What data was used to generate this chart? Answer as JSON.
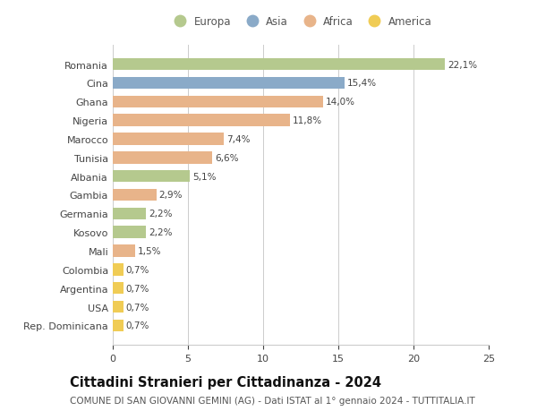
{
  "categories": [
    "Rep. Dominicana",
    "USA",
    "Argentina",
    "Colombia",
    "Mali",
    "Kosovo",
    "Germania",
    "Gambia",
    "Albania",
    "Tunisia",
    "Marocco",
    "Nigeria",
    "Ghana",
    "Cina",
    "Romania"
  ],
  "values": [
    0.7,
    0.7,
    0.7,
    0.7,
    1.5,
    2.2,
    2.2,
    2.9,
    5.1,
    6.6,
    7.4,
    11.8,
    14.0,
    15.4,
    22.1
  ],
  "labels": [
    "0,7%",
    "0,7%",
    "0,7%",
    "0,7%",
    "1,5%",
    "2,2%",
    "2,2%",
    "2,9%",
    "5,1%",
    "6,6%",
    "7,4%",
    "11,8%",
    "14,0%",
    "15,4%",
    "22,1%"
  ],
  "continents": [
    "America",
    "America",
    "America",
    "America",
    "Africa",
    "Europa",
    "Europa",
    "Africa",
    "Europa",
    "Africa",
    "Africa",
    "Africa",
    "Africa",
    "Asia",
    "Europa"
  ],
  "colors": {
    "Europa": "#b5c98e",
    "Asia": "#8aaac8",
    "Africa": "#e8b48a",
    "America": "#f0cc55"
  },
  "legend_order": [
    "Europa",
    "Asia",
    "Africa",
    "America"
  ],
  "title": "Cittadini Stranieri per Cittadinanza - 2024",
  "subtitle": "COMUNE DI SAN GIOVANNI GEMINI (AG) - Dati ISTAT al 1° gennaio 2024 - TUTTITALIA.IT",
  "xlim": [
    0,
    25
  ],
  "xticks": [
    0,
    5,
    10,
    15,
    20,
    25
  ],
  "background_color": "#ffffff",
  "grid_color": "#cccccc",
  "bar_height": 0.65,
  "title_fontsize": 10.5,
  "subtitle_fontsize": 7.5,
  "label_fontsize": 7.5,
  "tick_fontsize": 8,
  "legend_fontsize": 8.5
}
